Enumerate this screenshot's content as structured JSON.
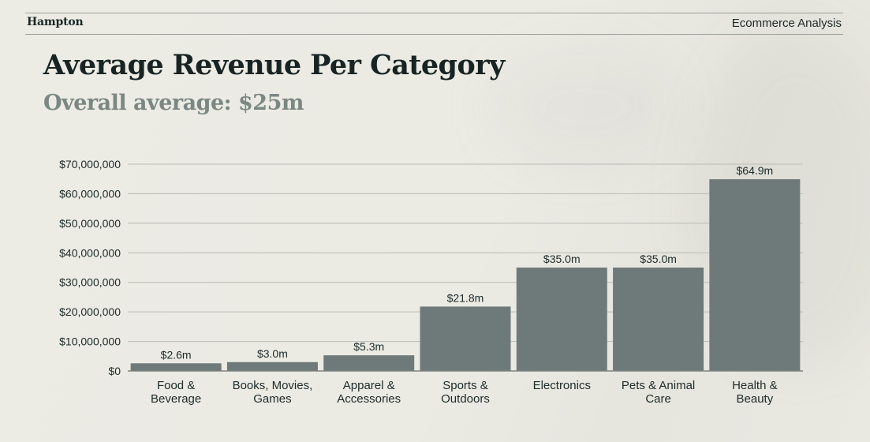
{
  "header": {
    "brand": "Hampton",
    "section": "Ecommerce Analysis"
  },
  "title": "Average Revenue Per Category",
  "subtitle": "Overall average: $25m",
  "colors": {
    "bar": "#6e7a79",
    "background": "#ecebe4",
    "gridline": "#b9bcb6",
    "text": "#1d2b2a",
    "subtitle": "#7b8783"
  },
  "chart_data": {
    "type": "bar",
    "categories": [
      [
        "Food &",
        "Beverage"
      ],
      [
        "Books, Movies,",
        "Games"
      ],
      [
        "Apparel &",
        "Accessories"
      ],
      [
        "Sports &",
        "Outdoors"
      ],
      [
        "Electronics"
      ],
      [
        "Pets & Animal",
        "Care"
      ],
      [
        "Health &",
        "Beauty"
      ]
    ],
    "values": [
      2600000,
      3000000,
      5300000,
      21800000,
      35000000,
      35000000,
      64900000
    ],
    "data_labels": [
      "$2.6m",
      "$3.0m",
      "$5.3m",
      "$21.8m",
      "$35.0m",
      "$35.0m",
      "$64.9m"
    ],
    "ylim": [
      0,
      70000000
    ],
    "yticks": [
      0,
      10000000,
      20000000,
      30000000,
      40000000,
      50000000,
      60000000,
      70000000
    ],
    "ytick_labels": [
      "$0",
      "$10,000,000",
      "$20,000,000",
      "$30,000,000",
      "$40,000,000",
      "$50,000,000",
      "$60,000,000",
      "$70,000,000"
    ],
    "grid": true,
    "legend": "none"
  }
}
